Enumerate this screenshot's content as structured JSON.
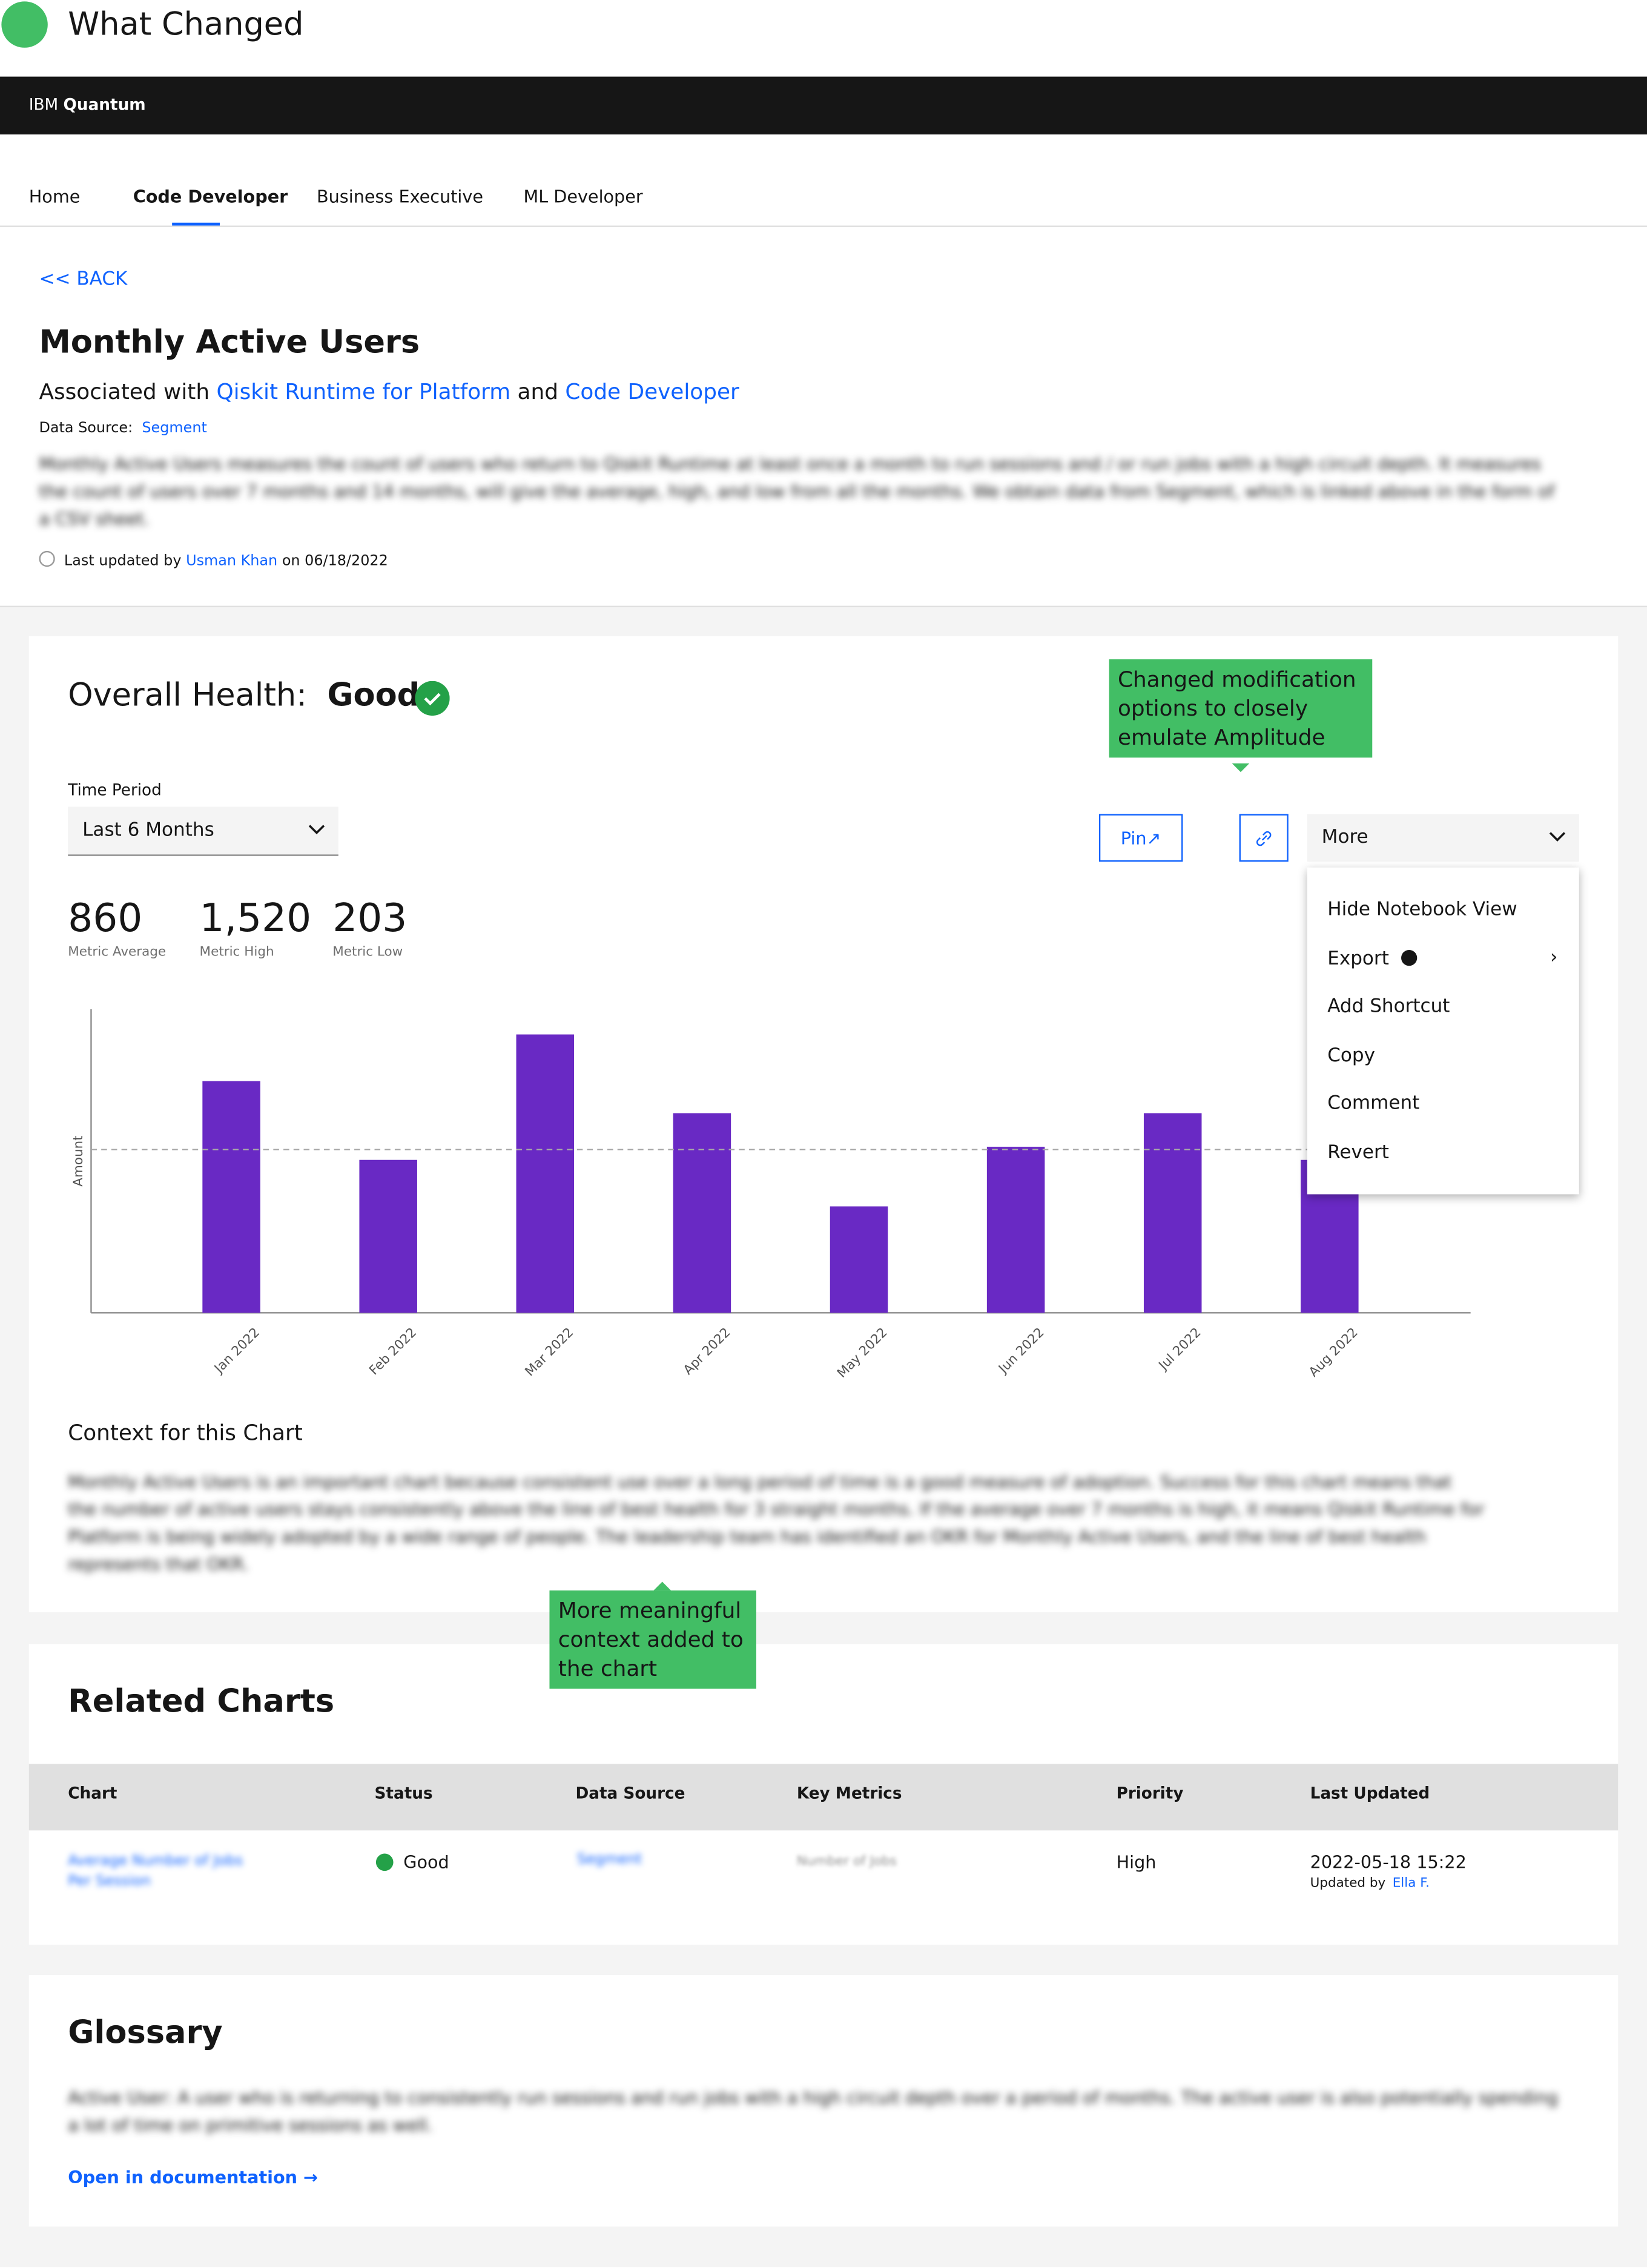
{
  "annotation_header": "What Changed",
  "brand": {
    "prefix": "IBM",
    "name": "Quantum"
  },
  "tabs": [
    "Home",
    "Code Developer",
    "Business Executive",
    "ML Developer"
  ],
  "active_tab": 1,
  "back": "<< BACK",
  "title": "Monthly Active Users",
  "associated": {
    "prefix": "Associated with",
    "link1": "Qiskit Runtime for Platform",
    "joiner": "and",
    "link2": "Code Developer"
  },
  "data_source": {
    "label": "Data Source:",
    "link": "Segment"
  },
  "description": "Monthly Active Users measures the count of users who return to Qiskit Runtime at least once a month to run sessions and / or run jobs with a high circuit depth.   It measures the count of users over 7 months and 14 months, will give the average, high, and low from all the months.  We obtain data from Segment, which is linked above in the form of a CSV sheet.",
  "updated": {
    "prefix": "Last updated by",
    "user": "Usman Khan",
    "suffix": "on 06/18/2022"
  },
  "health": {
    "label": "Overall Health:",
    "status": "Good"
  },
  "callouts": [
    "Changed modification options to closely emulate Amplitude",
    "More meaningful context added to the chart"
  ],
  "time_period": {
    "label": "Time Period",
    "selected": "Last 6 Months"
  },
  "actions": {
    "pin": "Pin",
    "more": "More"
  },
  "menu": [
    "Hide Notebook View",
    "Export",
    "Add Shortcut",
    "Copy",
    "Comment",
    "Revert"
  ],
  "metrics": [
    {
      "value": "860",
      "label": "Metric Average"
    },
    {
      "value": "1,520",
      "label": "Metric High"
    },
    {
      "value": "203",
      "label": "Metric Low"
    }
  ],
  "chart_data": {
    "type": "bar",
    "y_label": "Amount",
    "categories": [
      "Jan 2022",
      "Feb 2022",
      "Mar 2022",
      "Apr 2022",
      "May 2022",
      "Jun 2022",
      "Jul 2022",
      "Aug 2022"
    ],
    "values": [
      1221,
      806,
      1467,
      1052,
      561,
      875,
      1052,
      806
    ],
    "color": "#6929c4",
    "ylim": [
      0,
      1600
    ],
    "reference_line": 860
  },
  "context": {
    "title": "Context for this Chart",
    "text": "Monthly Active Users is an important chart because consistent use over a long period of time is a good measure of adoption.  Success for this chart means that the number of active users stays consistently above the line of best health for 3 straight months.  If the average over 7 months is high, it means Qiskit Runtime for Platform is being widely adopted by a wide range of people.  The leadership team has identified an OKR for Monthly Active Users, and the line of best health represents that OKR."
  },
  "related": {
    "title": "Related Charts",
    "columns": [
      "Chart",
      "Status",
      "Data Source",
      "Key Metrics",
      "Priority",
      "Last Updated"
    ],
    "rows": [
      {
        "chart": "Average Number of Jobs Per Session",
        "status": "Good",
        "source": "Segment",
        "metrics": "Number of Jobs",
        "priority": "High",
        "updated": "2022-05-18 15:22",
        "updated_by_label": "Updated by",
        "updated_by": "Ella F."
      }
    ]
  },
  "glossary": {
    "title": "Glossary",
    "text": "Active User:  A user who is returning to consistently run sessions and run jobs with a high circuit depth over a period of months.  The active user is also potentially spending a lot of time on primitive sessions as well.",
    "link": "Open in documentation"
  }
}
